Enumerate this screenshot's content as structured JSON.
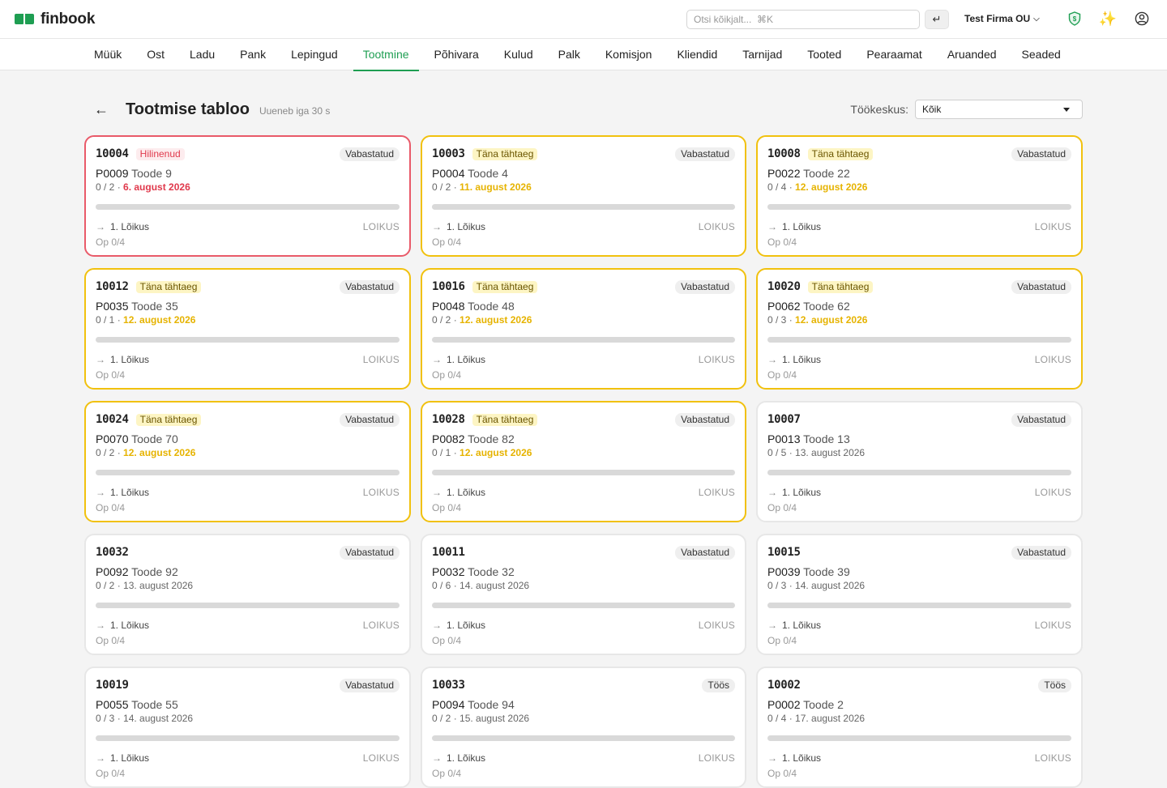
{
  "app": {
    "name": "finbook"
  },
  "header": {
    "search_placeholder": "Otsi kõikjalt...  ⌘K",
    "enter_glyph": "↵",
    "company": "Test Firma OU",
    "icons": [
      "shield-icon",
      "sparkle-icon",
      "user-circle-icon"
    ]
  },
  "nav": {
    "active": "Tootmine",
    "items": [
      "Müük",
      "Ost",
      "Ladu",
      "Pank",
      "Lepingud",
      "Tootmine",
      "Põhivara",
      "Kulud",
      "Palk",
      "Komisjon",
      "Kliendid",
      "Tarnijad",
      "Tooted",
      "Pearaamat",
      "Aruanded",
      "Seaded"
    ]
  },
  "page": {
    "title": "Tootmise tabloo",
    "refresh_note": "Uueneb iga 30 s",
    "workcenter_label": "Töökeskus:",
    "workcenter_value": "Kõik"
  },
  "colors": {
    "brand": "#1e9e52",
    "late": "#e95a69",
    "today": "#f1c10e"
  },
  "cards": [
    {
      "no": "10004",
      "badge": "Hilinenud",
      "state": "late",
      "status": "Vabastatud",
      "code": "P0009",
      "name": "Toode 9",
      "qty": "0 / 2",
      "date": "6. august 2026",
      "progress": 0,
      "step": "1. Lõikus",
      "wc": "LOIKUS",
      "ops": "Op 0/4"
    },
    {
      "no": "10003",
      "badge": "Täna tähtaeg",
      "state": "today",
      "status": "Vabastatud",
      "code": "P0004",
      "name": "Toode 4",
      "qty": "0 / 2",
      "date": "11. august 2026",
      "progress": 0,
      "step": "1. Lõikus",
      "wc": "LOIKUS",
      "ops": "Op 0/4"
    },
    {
      "no": "10008",
      "badge": "Täna tähtaeg",
      "state": "today",
      "status": "Vabastatud",
      "code": "P0022",
      "name": "Toode 22",
      "qty": "0 / 4",
      "date": "12. august 2026",
      "progress": 0,
      "step": "1. Lõikus",
      "wc": "LOIKUS",
      "ops": "Op 0/4"
    },
    {
      "no": "10012",
      "badge": "Täna tähtaeg",
      "state": "today",
      "status": "Vabastatud",
      "code": "P0035",
      "name": "Toode 35",
      "qty": "0 / 1",
      "date": "12. august 2026",
      "progress": 0,
      "step": "1. Lõikus",
      "wc": "LOIKUS",
      "ops": "Op 0/4"
    },
    {
      "no": "10016",
      "badge": "Täna tähtaeg",
      "state": "today",
      "status": "Vabastatud",
      "code": "P0048",
      "name": "Toode 48",
      "qty": "0 / 2",
      "date": "12. august 2026",
      "progress": 0,
      "step": "1. Lõikus",
      "wc": "LOIKUS",
      "ops": "Op 0/4"
    },
    {
      "no": "10020",
      "badge": "Täna tähtaeg",
      "state": "today",
      "status": "Vabastatud",
      "code": "P0062",
      "name": "Toode 62",
      "qty": "0 / 3",
      "date": "12. august 2026",
      "progress": 0,
      "step": "1. Lõikus",
      "wc": "LOIKUS",
      "ops": "Op 0/4"
    },
    {
      "no": "10024",
      "badge": "Täna tähtaeg",
      "state": "today",
      "status": "Vabastatud",
      "code": "P0070",
      "name": "Toode 70",
      "qty": "0 / 2",
      "date": "12. august 2026",
      "progress": 0,
      "step": "1. Lõikus",
      "wc": "LOIKUS",
      "ops": "Op 0/4"
    },
    {
      "no": "10028",
      "badge": "Täna tähtaeg",
      "state": "today",
      "status": "Vabastatud",
      "code": "P0082",
      "name": "Toode 82",
      "qty": "0 / 1",
      "date": "12. august 2026",
      "progress": 0,
      "step": "1. Lõikus",
      "wc": "LOIKUS",
      "ops": "Op 0/4"
    },
    {
      "no": "10007",
      "badge": "",
      "state": "normal",
      "status": "Vabastatud",
      "code": "P0013",
      "name": "Toode 13",
      "qty": "0 / 5",
      "date": "13. august 2026",
      "progress": 0,
      "step": "1. Lõikus",
      "wc": "LOIKUS",
      "ops": "Op 0/4"
    },
    {
      "no": "10032",
      "badge": "",
      "state": "normal",
      "status": "Vabastatud",
      "code": "P0092",
      "name": "Toode 92",
      "qty": "0 / 2",
      "date": "13. august 2026",
      "progress": 0,
      "step": "1. Lõikus",
      "wc": "LOIKUS",
      "ops": "Op 0/4"
    },
    {
      "no": "10011",
      "badge": "",
      "state": "normal",
      "status": "Vabastatud",
      "code": "P0032",
      "name": "Toode 32",
      "qty": "0 / 6",
      "date": "14. august 2026",
      "progress": 0,
      "step": "1. Lõikus",
      "wc": "LOIKUS",
      "ops": "Op 0/4"
    },
    {
      "no": "10015",
      "badge": "",
      "state": "normal",
      "status": "Vabastatud",
      "code": "P0039",
      "name": "Toode 39",
      "qty": "0 / 3",
      "date": "14. august 2026",
      "progress": 0,
      "step": "1. Lõikus",
      "wc": "LOIKUS",
      "ops": "Op 0/4"
    },
    {
      "no": "10019",
      "badge": "",
      "state": "normal",
      "status": "Vabastatud",
      "code": "P0055",
      "name": "Toode 55",
      "qty": "0 / 3",
      "date": "14. august 2026",
      "progress": 0,
      "step": "1. Lõikus",
      "wc": "LOIKUS",
      "ops": "Op 0/4"
    },
    {
      "no": "10033",
      "badge": "",
      "state": "normal",
      "status": "Töös",
      "code": "P0094",
      "name": "Toode 94",
      "qty": "0 / 2",
      "date": "15. august 2026",
      "progress": 0,
      "step": "1. Lõikus",
      "wc": "LOIKUS",
      "ops": "Op 0/4"
    },
    {
      "no": "10002",
      "badge": "",
      "state": "normal",
      "status": "Töös",
      "code": "P0002",
      "name": "Toode 2",
      "qty": "0 / 4",
      "date": "17. august 2026",
      "progress": 0,
      "step": "1. Lõikus",
      "wc": "LOIKUS",
      "ops": "Op 0/4"
    }
  ]
}
